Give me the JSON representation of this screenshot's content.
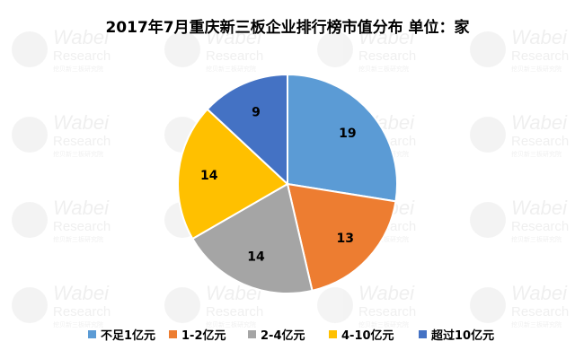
{
  "chart_data": {
    "type": "pie",
    "title": "2017年7月重庆新三板企业排行榜市值分布 单位：家",
    "categories": [
      "不足1亿元",
      "1-2亿元",
      "2-4亿元",
      "4-10亿元",
      "超过10亿元"
    ],
    "values": [
      19,
      13,
      14,
      14,
      9
    ],
    "colors": [
      "#5B9BD5",
      "#ED7D31",
      "#A5A5A5",
      "#FFC000",
      "#4472C4"
    ],
    "legend_position": "bottom",
    "start_angle": "12 o'clock, clockwise"
  },
  "watermark": {
    "line1": "Wabei",
    "line2": "Research",
    "line3": "挖贝新三板研究院"
  }
}
